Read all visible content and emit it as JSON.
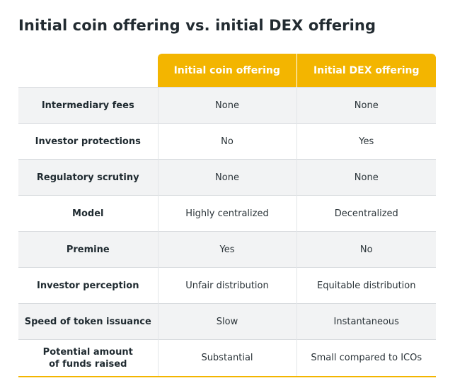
{
  "title": "Initial coin offering vs. initial DEX offering",
  "header": {
    "corner": "",
    "col_a": "Initial coin offering",
    "col_b": "Initial DEX offering"
  },
  "rows": [
    {
      "label": "Intermediary fees",
      "a": "None",
      "b": "None"
    },
    {
      "label": "Investor protections",
      "a": "No",
      "b": "Yes"
    },
    {
      "label": "Regulatory scrutiny",
      "a": "None",
      "b": "None"
    },
    {
      "label": "Model",
      "a": "Highly centralized",
      "b": "Decentralized"
    },
    {
      "label": "Premine",
      "a": "Yes",
      "b": "No"
    },
    {
      "label": "Investor perception",
      "a": "Unfair distribution",
      "b": "Equitable distribution"
    },
    {
      "label": "Speed of token issuance",
      "a": "Slow",
      "b": "Instantaneous"
    },
    {
      "label_line1": "Potential amount",
      "label_line2": "of funds raised",
      "a": "Substantial",
      "b": "Small compared to ICOs"
    }
  ],
  "colors": {
    "accent": "#f3b500",
    "row_shade": "#f2f3f4",
    "text": "#1f2a30"
  }
}
